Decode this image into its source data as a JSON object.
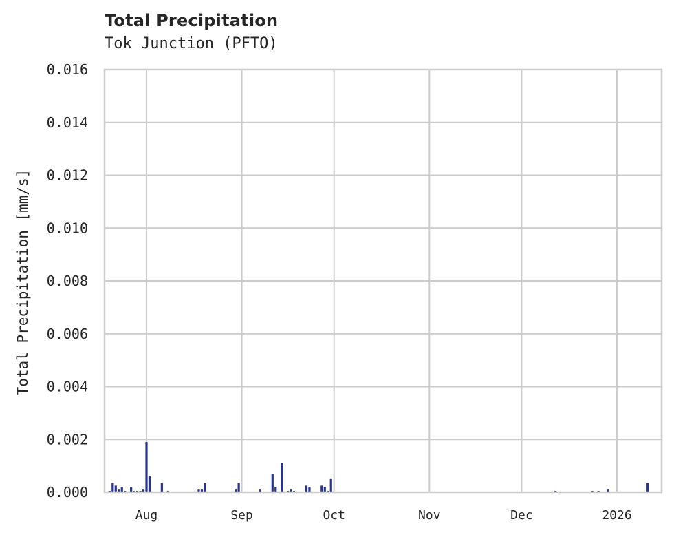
{
  "header": {
    "title": "Total Precipitation",
    "subtitle": "Tok Junction (PFTO)"
  },
  "colors": {
    "bar": "#26338f",
    "grid": "#cccccc",
    "frame": "#cccccc",
    "text": "#262626",
    "background": "#ffffff"
  },
  "chart_data": {
    "type": "bar",
    "title": "Total Precipitation",
    "subtitle": "Tok Junction (PFTO)",
    "xlabel": "",
    "ylabel": "Total Precipitation [mm/s]",
    "ylim": [
      0,
      0.016
    ],
    "yticks": [
      "0.000",
      "0.002",
      "0.004",
      "0.006",
      "0.008",
      "0.010",
      "0.012",
      "0.014",
      "0.016"
    ],
    "xticks": [
      "Aug",
      "Sep",
      "Oct",
      "Nov",
      "Dec",
      "2026"
    ],
    "xrange": [
      "2025-07-18",
      "2026-01-14"
    ],
    "grid": true,
    "legend": null,
    "series": [
      {
        "name": "Total Precipitation",
        "x": [
          "2025-07-20",
          "2025-07-21",
          "2025-07-22",
          "2025-07-23",
          "2025-07-24",
          "2025-07-25",
          "2025-07-27",
          "2025-07-28",
          "2025-07-29",
          "2025-07-30",
          "2025-07-31",
          "2025-08-01",
          "2025-08-02",
          "2025-08-06",
          "2025-08-08",
          "2025-08-18",
          "2025-08-19",
          "2025-08-20",
          "2025-08-30",
          "2025-08-31",
          "2025-09-07",
          "2025-09-11",
          "2025-09-12",
          "2025-09-14",
          "2025-09-16",
          "2025-09-17",
          "2025-09-18",
          "2025-09-22",
          "2025-09-23",
          "2025-09-27",
          "2025-09-28",
          "2025-09-29",
          "2025-09-30",
          "2025-12-12",
          "2025-12-24",
          "2025-12-26",
          "2025-12-29",
          "2026-01-11"
        ],
        "values": [
          5e-05,
          0.00035,
          0.00025,
          0.0001,
          0.0002,
          5e-05,
          0.0002,
          5e-05,
          5e-05,
          5e-05,
          0.0001,
          0.0019,
          0.0006,
          0.00035,
          5e-05,
          0.0001,
          0.0001,
          0.00035,
          0.0001,
          0.00035,
          0.0001,
          0.0007,
          0.0002,
          0.0011,
          5e-05,
          0.0001,
          5e-05,
          0.00025,
          0.0002,
          0.00025,
          0.0002,
          5e-05,
          0.0005,
          5e-05,
          5e-05,
          5e-05,
          0.0001,
          0.00035
        ]
      }
    ]
  }
}
